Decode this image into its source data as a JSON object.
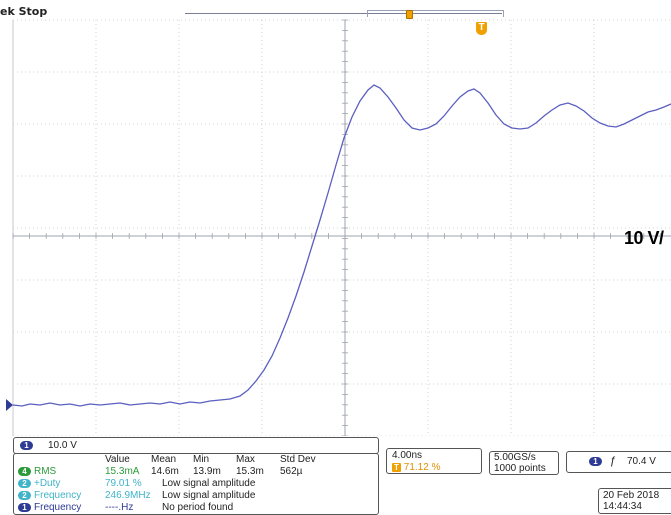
{
  "status": {
    "text": "ek Stop"
  },
  "trigger": {
    "marker_label": "T",
    "position_percent": 71.12
  },
  "overlay": {
    "scale_text": "10 V/"
  },
  "channel": {
    "badge": "1",
    "scale": "10.0 V"
  },
  "measurements": {
    "headers": [
      "Value",
      "Mean",
      "Min",
      "Max",
      "Std Dev"
    ],
    "rows": [
      {
        "badge": "4",
        "name": "RMS",
        "value": "15.3mA",
        "mean": "14.6m",
        "min": "13.9m",
        "max": "15.3m",
        "std_dev": "562µ",
        "color": "#2c9a3a"
      },
      {
        "badge": "2",
        "name": "+Duty",
        "value": "79.01 %",
        "message": "Low signal amplitude",
        "color": "#40b4c8"
      },
      {
        "badge": "2",
        "name": "Frequency",
        "value": "246.9MHz",
        "message": "Low signal amplitude",
        "color": "#40b4c8"
      },
      {
        "badge": "1",
        "name": "Frequency",
        "value": "----.Hz",
        "message": "No period found",
        "color": "#2d3b94"
      }
    ]
  },
  "timebase": {
    "scale": "4.00ns",
    "trigger_pos_label": "T",
    "trigger_pos": "71.12 %"
  },
  "acquisition": {
    "sample_rate": "5.00GS/s",
    "record_length": "1000 points"
  },
  "trigger_panel": {
    "badge": "1",
    "slope": "ƒ",
    "level": "70.4 V"
  },
  "datetime": {
    "date": "20 Feb  2018",
    "time": "14:44:34"
  },
  "colors": {
    "trace": "#5b5fc0",
    "grid": "#c5c8cf",
    "graticule_bg": "#ffffff",
    "trigger_orange": "#f0a000"
  }
}
